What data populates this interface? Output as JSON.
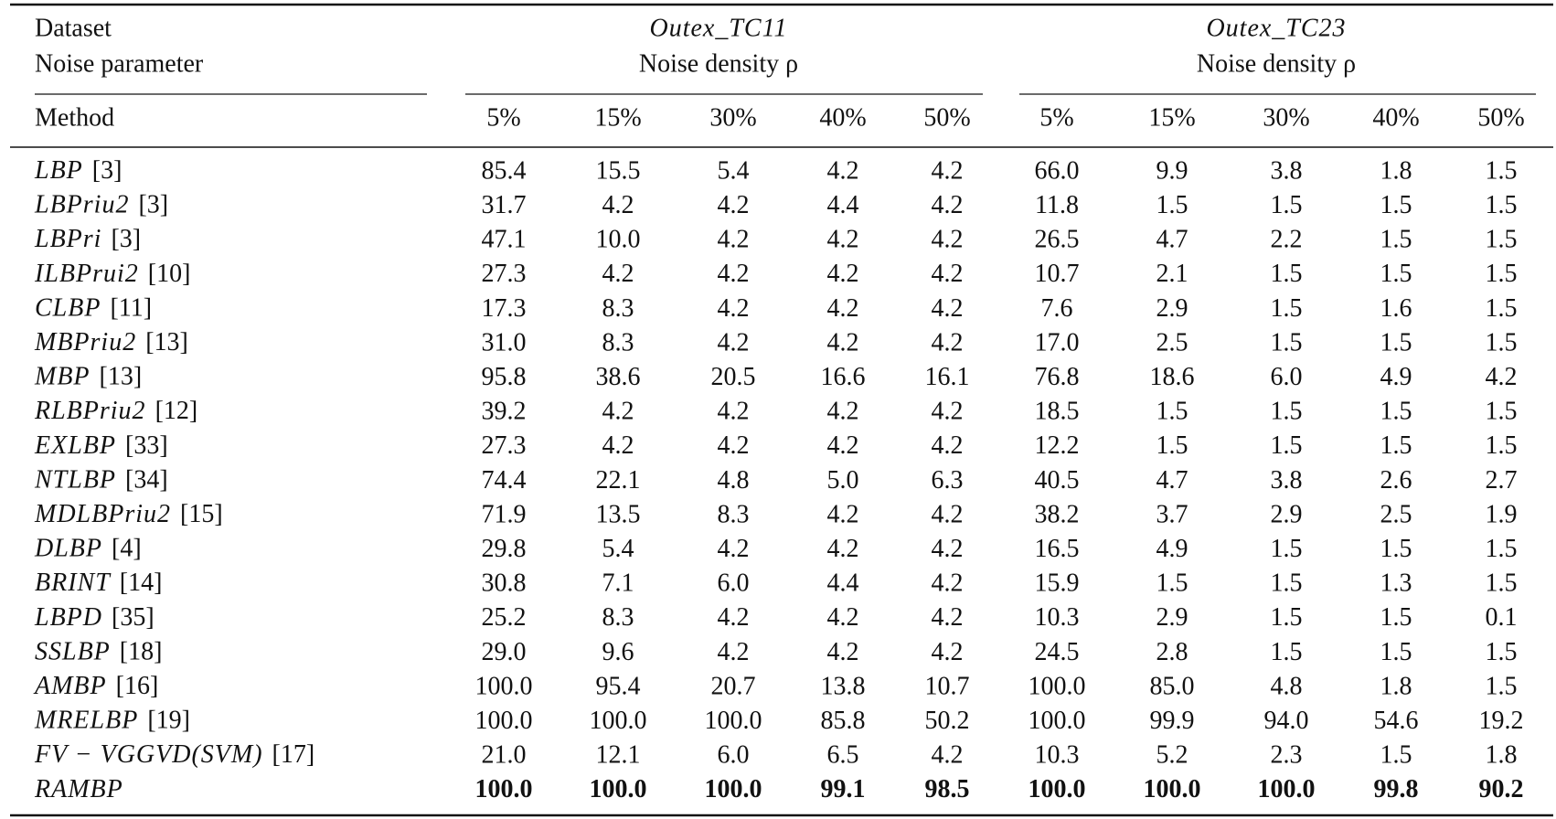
{
  "table": {
    "header": {
      "dataset": "Dataset",
      "noise_parameter": "Noise parameter",
      "method": "Method",
      "groups": [
        {
          "name": "Outex_TC11",
          "parameter": "Noise density ρ",
          "columns": [
            "5%",
            "15%",
            "30%",
            "40%",
            "50%"
          ]
        },
        {
          "name": "Outex_TC23",
          "parameter": "Noise density ρ",
          "columns": [
            "5%",
            "15%",
            "30%",
            "40%",
            "50%"
          ]
        }
      ]
    },
    "rows": [
      {
        "method": "LBP",
        "ref": "[3]",
        "values": [
          "85.4",
          "15.5",
          "5.4",
          "4.2",
          "4.2",
          "66.0",
          "9.9",
          "3.8",
          "1.8",
          "1.5"
        ]
      },
      {
        "method": "LBPriu2",
        "ref": "[3]",
        "values": [
          "31.7",
          "4.2",
          "4.2",
          "4.4",
          "4.2",
          "11.8",
          "1.5",
          "1.5",
          "1.5",
          "1.5"
        ]
      },
      {
        "method": "LBPri",
        "ref": "[3]",
        "values": [
          "47.1",
          "10.0",
          "4.2",
          "4.2",
          "4.2",
          "26.5",
          "4.7",
          "2.2",
          "1.5",
          "1.5"
        ]
      },
      {
        "method": "ILBPrui2",
        "ref": "[10]",
        "values": [
          "27.3",
          "4.2",
          "4.2",
          "4.2",
          "4.2",
          "10.7",
          "2.1",
          "1.5",
          "1.5",
          "1.5"
        ]
      },
      {
        "method": "CLBP",
        "ref": "[11]",
        "values": [
          "17.3",
          "8.3",
          "4.2",
          "4.2",
          "4.2",
          "7.6",
          "2.9",
          "1.5",
          "1.6",
          "1.5"
        ]
      },
      {
        "method": "MBPriu2",
        "ref": "[13]",
        "values": [
          "31.0",
          "8.3",
          "4.2",
          "4.2",
          "4.2",
          "17.0",
          "2.5",
          "1.5",
          "1.5",
          "1.5"
        ]
      },
      {
        "method": "MBP",
        "ref": "[13]",
        "values": [
          "95.8",
          "38.6",
          "20.5",
          "16.6",
          "16.1",
          "76.8",
          "18.6",
          "6.0",
          "4.9",
          "4.2"
        ]
      },
      {
        "method": "RLBPriu2",
        "ref": "[12]",
        "values": [
          "39.2",
          "4.2",
          "4.2",
          "4.2",
          "4.2",
          "18.5",
          "1.5",
          "1.5",
          "1.5",
          "1.5"
        ]
      },
      {
        "method": "EXLBP",
        "ref": "[33]",
        "values": [
          "27.3",
          "4.2",
          "4.2",
          "4.2",
          "4.2",
          "12.2",
          "1.5",
          "1.5",
          "1.5",
          "1.5"
        ]
      },
      {
        "method": "NTLBP",
        "ref": "[34]",
        "values": [
          "74.4",
          "22.1",
          "4.8",
          "5.0",
          "6.3",
          "40.5",
          "4.7",
          "3.8",
          "2.6",
          "2.7"
        ]
      },
      {
        "method": "MDLBPriu2",
        "ref": "[15]",
        "values": [
          "71.9",
          "13.5",
          "8.3",
          "4.2",
          "4.2",
          "38.2",
          "3.7",
          "2.9",
          "2.5",
          "1.9"
        ]
      },
      {
        "method": "DLBP",
        "ref": "[4]",
        "values": [
          "29.8",
          "5.4",
          "4.2",
          "4.2",
          "4.2",
          "16.5",
          "4.9",
          "1.5",
          "1.5",
          "1.5"
        ]
      },
      {
        "method": "BRINT",
        "ref": "[14]",
        "values": [
          "30.8",
          "7.1",
          "6.0",
          "4.4",
          "4.2",
          "15.9",
          "1.5",
          "1.5",
          "1.3",
          "1.5"
        ]
      },
      {
        "method": "LBPD",
        "ref": "[35]",
        "values": [
          "25.2",
          "8.3",
          "4.2",
          "4.2",
          "4.2",
          "10.3",
          "2.9",
          "1.5",
          "1.5",
          "0.1"
        ]
      },
      {
        "method": "SSLBP",
        "ref": "[18]",
        "values": [
          "29.0",
          "9.6",
          "4.2",
          "4.2",
          "4.2",
          "24.5",
          "2.8",
          "1.5",
          "1.5",
          "1.5"
        ]
      },
      {
        "method": "AMBP",
        "ref": "[16]",
        "values": [
          "100.0",
          "95.4",
          "20.7",
          "13.8",
          "10.7",
          "100.0",
          "85.0",
          "4.8",
          "1.8",
          "1.5"
        ]
      },
      {
        "method": "MRELBP",
        "ref": "[19]",
        "values": [
          "100.0",
          "100.0",
          "100.0",
          "85.8",
          "50.2",
          "100.0",
          "99.9",
          "94.0",
          "54.6",
          "19.2"
        ]
      },
      {
        "method": "FV − VGGVD(SVM)",
        "ref": "[17]",
        "values": [
          "21.0",
          "12.1",
          "6.0",
          "6.5",
          "4.2",
          "10.3",
          "5.2",
          "2.3",
          "1.5",
          "1.8"
        ]
      },
      {
        "method": "RAMBP",
        "values": [
          "100.0",
          "100.0",
          "100.0",
          "99.1",
          "98.5",
          "100.0",
          "100.0",
          "100.0",
          "99.8",
          "90.2"
        ]
      }
    ]
  }
}
